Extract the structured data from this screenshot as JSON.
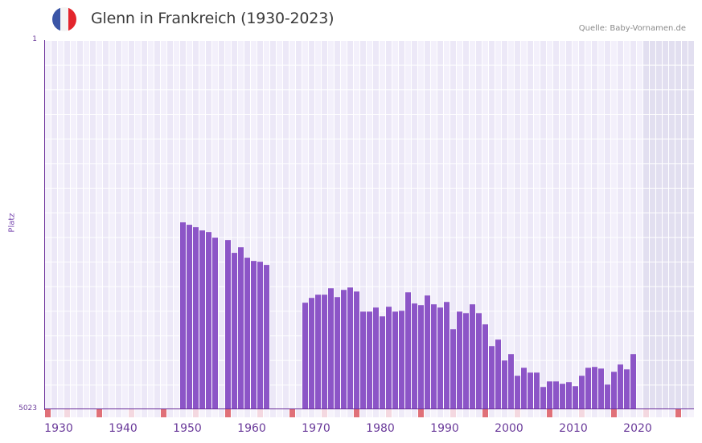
{
  "header": {
    "title": "Glenn in Frankreich (1930-2023)",
    "source": "Quelle: Baby-Vornamen.de",
    "flag_icon": "france-flag-icon",
    "flag_colors": [
      "#3a55a6",
      "#f4f4f4",
      "#e3252c"
    ]
  },
  "colors": {
    "bar": "#8c55c7",
    "axis": "#6a2e9a",
    "grid_bg_a": "#f3f0fb",
    "grid_bg_b": "#ece8f7",
    "future_bg": "#e2dff0",
    "decade_marker": "#e07078",
    "halfdecade_marker": "#f4d8e0"
  },
  "chart_data": {
    "type": "bar",
    "title": "Glenn in Frankreich (1930-2023)",
    "xlabel": "",
    "ylabel": "Platz",
    "y_inverted": true,
    "ylim": [
      1,
      5023
    ],
    "y_ticks": [
      "1",
      "5023"
    ],
    "x_ticks": [
      "1930",
      "1940",
      "1950",
      "1960",
      "1970",
      "1980",
      "1990",
      "2000",
      "2010",
      "2020"
    ],
    "x_range": [
      1930,
      2030
    ],
    "grid": true,
    "shaded_region": [
      2023,
      2030
    ],
    "x": [
      1951,
      1952,
      1953,
      1954,
      1955,
      1956,
      1958,
      1959,
      1960,
      1961,
      1962,
      1963,
      1964,
      1970,
      1971,
      1972,
      1973,
      1974,
      1975,
      1976,
      1977,
      1978,
      1979,
      1980,
      1981,
      1982,
      1983,
      1984,
      1985,
      1986,
      1987,
      1988,
      1989,
      1990,
      1991,
      1992,
      1993,
      1994,
      1995,
      1996,
      1997,
      1998,
      1999,
      2000,
      2001,
      2002,
      2003,
      2004,
      2005,
      2006,
      2007,
      2008,
      2009,
      2010,
      2011,
      2012,
      2013,
      2014,
      2015,
      2016,
      2017,
      2018,
      2019,
      2020,
      2021
    ],
    "values": [
      2480,
      2513,
      2546,
      2590,
      2612,
      2688,
      2721,
      2895,
      2819,
      2961,
      3005,
      3016,
      3059,
      3573,
      3508,
      3464,
      3464,
      3377,
      3497,
      3399,
      3366,
      3421,
      3694,
      3694,
      3639,
      3759,
      3628,
      3694,
      3683,
      3432,
      3584,
      3606,
      3475,
      3595,
      3639,
      3563,
      3934,
      3694,
      3716,
      3595,
      3716,
      3868,
      4163,
      4075,
      4359,
      4272,
      4567,
      4458,
      4524,
      4524,
      4720,
      4644,
      4644,
      4676,
      4654,
      4709,
      4567,
      4458,
      4447,
      4469,
      4687,
      4513,
      4414,
      4480,
      4272
    ]
  },
  "yaxis": {
    "top_label": "1",
    "bottom_label": "5023",
    "title": "Platz"
  }
}
